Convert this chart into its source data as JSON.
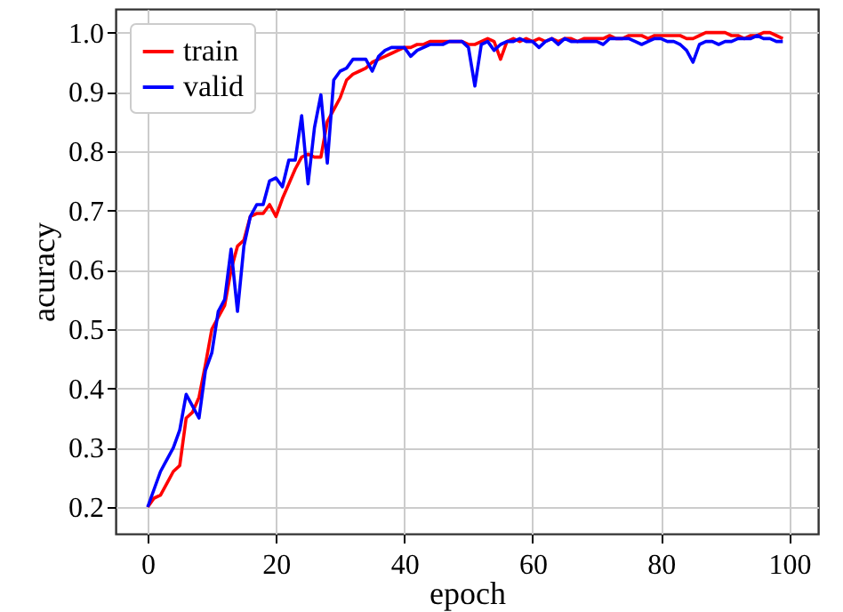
{
  "chart_data": {
    "type": "line",
    "xlabel": "epoch",
    "ylabel": "acuracy",
    "x": [
      0,
      1,
      2,
      3,
      4,
      5,
      6,
      7,
      8,
      9,
      10,
      11,
      12,
      13,
      14,
      15,
      16,
      17,
      18,
      19,
      20,
      21,
      22,
      23,
      24,
      25,
      26,
      27,
      28,
      29,
      30,
      31,
      32,
      33,
      34,
      35,
      36,
      37,
      38,
      39,
      40,
      41,
      42,
      43,
      44,
      45,
      46,
      47,
      48,
      49,
      50,
      51,
      52,
      53,
      54,
      55,
      56,
      57,
      58,
      59,
      60,
      61,
      62,
      63,
      64,
      65,
      66,
      67,
      68,
      69,
      70,
      71,
      72,
      73,
      74,
      75,
      76,
      77,
      78,
      79,
      80,
      81,
      82,
      83,
      84,
      85,
      86,
      87,
      88,
      89,
      90,
      91,
      92,
      93,
      94,
      95,
      96,
      97,
      98,
      99
    ],
    "series": [
      {
        "name": "train",
        "color": "#ff0000",
        "values": [
          0.2,
          0.215,
          0.22,
          0.24,
          0.26,
          0.27,
          0.35,
          0.36,
          0.385,
          0.44,
          0.5,
          0.52,
          0.54,
          0.6,
          0.64,
          0.65,
          0.69,
          0.695,
          0.695,
          0.71,
          0.69,
          0.72,
          0.745,
          0.77,
          0.79,
          0.795,
          0.79,
          0.79,
          0.85,
          0.87,
          0.89,
          0.92,
          0.93,
          0.935,
          0.94,
          0.95,
          0.955,
          0.96,
          0.965,
          0.97,
          0.975,
          0.975,
          0.98,
          0.98,
          0.985,
          0.985,
          0.985,
          0.985,
          0.985,
          0.985,
          0.98,
          0.98,
          0.985,
          0.99,
          0.985,
          0.955,
          0.985,
          0.99,
          0.985,
          0.99,
          0.985,
          0.99,
          0.985,
          0.99,
          0.985,
          0.99,
          0.99,
          0.985,
          0.99,
          0.99,
          0.99,
          0.99,
          0.995,
          0.99,
          0.99,
          0.995,
          0.995,
          0.995,
          0.99,
          0.995,
          0.995,
          0.995,
          0.995,
          0.995,
          0.99,
          0.99,
          0.995,
          1.0,
          1.0,
          1.0,
          1.0,
          0.995,
          0.995,
          0.99,
          0.995,
          0.995,
          1.0,
          1.0,
          0.995,
          0.99
        ]
      },
      {
        "name": "valid",
        "color": "#0000ff",
        "values": [
          0.2,
          0.23,
          0.26,
          0.28,
          0.3,
          0.33,
          0.39,
          0.37,
          0.35,
          0.43,
          0.46,
          0.53,
          0.55,
          0.635,
          0.53,
          0.64,
          0.69,
          0.71,
          0.71,
          0.75,
          0.755,
          0.74,
          0.785,
          0.785,
          0.86,
          0.745,
          0.84,
          0.895,
          0.78,
          0.92,
          0.935,
          0.94,
          0.955,
          0.955,
          0.955,
          0.935,
          0.96,
          0.97,
          0.975,
          0.975,
          0.975,
          0.96,
          0.97,
          0.975,
          0.98,
          0.98,
          0.98,
          0.985,
          0.985,
          0.985,
          0.975,
          0.91,
          0.98,
          0.985,
          0.97,
          0.98,
          0.985,
          0.985,
          0.99,
          0.985,
          0.985,
          0.975,
          0.985,
          0.99,
          0.98,
          0.99,
          0.985,
          0.985,
          0.985,
          0.985,
          0.985,
          0.98,
          0.99,
          0.99,
          0.99,
          0.99,
          0.985,
          0.98,
          0.985,
          0.99,
          0.99,
          0.985,
          0.985,
          0.98,
          0.97,
          0.95,
          0.98,
          0.985,
          0.985,
          0.98,
          0.985,
          0.985,
          0.99,
          0.99,
          0.99,
          0.995,
          0.99,
          0.99,
          0.985,
          0.985
        ]
      }
    ],
    "xlim": [
      -5,
      104.5
    ],
    "xticks": [
      0,
      20,
      40,
      60,
      80,
      100
    ],
    "ylim": [
      0.155,
      1.04
    ],
    "yticks": [
      0.2,
      0.3,
      0.4,
      0.5,
      0.6,
      0.7,
      0.8,
      0.9,
      {
        "value": 1,
        "label": "1.0"
      }
    ],
    "grid": true,
    "legend": "top left"
  }
}
